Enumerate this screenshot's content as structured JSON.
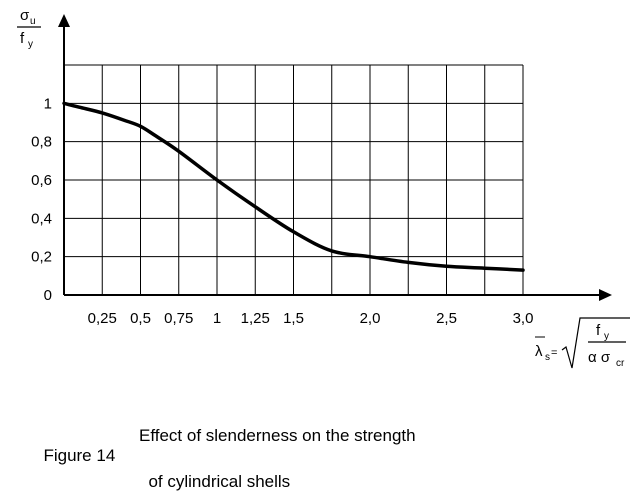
{
  "chart_data": {
    "type": "line",
    "ylabel": {
      "numerator": "σ",
      "numerator_sub": "u",
      "denominator": "f",
      "denominator_sub": "y"
    },
    "xlabel": {
      "lambda": "λ",
      "lambda_sub": "s",
      "equals": "=",
      "numerator": "f",
      "numerator_sub": "y",
      "denominator": "α σ",
      "denominator_sub": "cr"
    },
    "x_ticks": [
      {
        "value": 0.25,
        "label": "0,25"
      },
      {
        "value": 0.5,
        "label": "0,5"
      },
      {
        "value": 0.75,
        "label": "0,75"
      },
      {
        "value": 1.0,
        "label": "1"
      },
      {
        "value": 1.25,
        "label": "1,25"
      },
      {
        "value": 1.5,
        "label": "1,5"
      },
      {
        "value": 2.0,
        "label": "2,0"
      },
      {
        "value": 2.5,
        "label": "2,5"
      },
      {
        "value": 3.0,
        "label": "3,0"
      }
    ],
    "y_ticks": [
      {
        "value": 0,
        "label": "0"
      },
      {
        "value": 0.2,
        "label": "0,2"
      },
      {
        "value": 0.4,
        "label": "0,4"
      },
      {
        "value": 0.6,
        "label": "0,6"
      },
      {
        "value": 0.8,
        "label": "0,8"
      },
      {
        "value": 1.0,
        "label": "1"
      }
    ],
    "xlim": [
      0,
      3.0
    ],
    "ylim": [
      0,
      1.2
    ],
    "grid": true,
    "series": [
      {
        "x": [
          0,
          0.1,
          0.25,
          0.4,
          0.5,
          0.6,
          0.75,
          1.0,
          1.25,
          1.5,
          1.75,
          2.0,
          2.25,
          2.5,
          2.75,
          3.0
        ],
        "y": [
          1.0,
          0.98,
          0.95,
          0.91,
          0.88,
          0.83,
          0.75,
          0.6,
          0.46,
          0.33,
          0.23,
          0.2,
          0.17,
          0.15,
          0.14,
          0.13
        ]
      }
    ]
  },
  "caption": {
    "number": "Figure 14",
    "line1": "Effect of slenderness on the strength",
    "line2": "of cylindrical shells"
  }
}
